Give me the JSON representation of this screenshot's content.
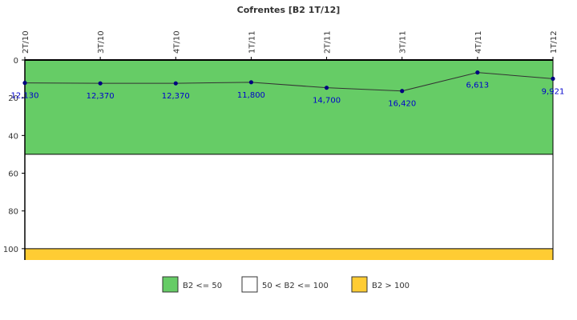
{
  "chart_data": {
    "type": "line",
    "title": "Cofrentes [B2 1T/12]",
    "categories": [
      "2T/10",
      "3T/10",
      "4T/10",
      "1T/11",
      "2T/11",
      "3T/11",
      "4T/11",
      "1T/12"
    ],
    "series": [
      {
        "values": [
          12.13,
          12.37,
          12.37,
          11.8,
          14.7,
          16.42,
          6.613,
          9.921
        ],
        "labels": [
          "12,130",
          "12,370",
          "12,370",
          "11,800",
          "14,700",
          "16,420",
          "6,613",
          "9,921"
        ],
        "color": "#000080",
        "line_color": "#333333"
      }
    ],
    "yaxis": {
      "ylim": [
        0,
        106
      ],
      "reversed": true,
      "ticks": [
        0,
        20,
        40,
        60,
        80,
        100
      ]
    },
    "bands": [
      {
        "from": 0,
        "to": 50,
        "color": "#66cc66"
      },
      {
        "from": 50,
        "to": 100,
        "color": "#ffffff"
      },
      {
        "from": 100,
        "to": 106,
        "color": "#ffcc33"
      }
    ],
    "legend": {
      "placement": "bottom",
      "items": [
        {
          "label": "B2 <= 50",
          "color": "#66cc66"
        },
        {
          "label": "50 < B2 <= 100",
          "color": "#ffffff"
        },
        {
          "label": "B2 > 100",
          "color": "#ffcc33"
        }
      ]
    },
    "grid": false
  }
}
